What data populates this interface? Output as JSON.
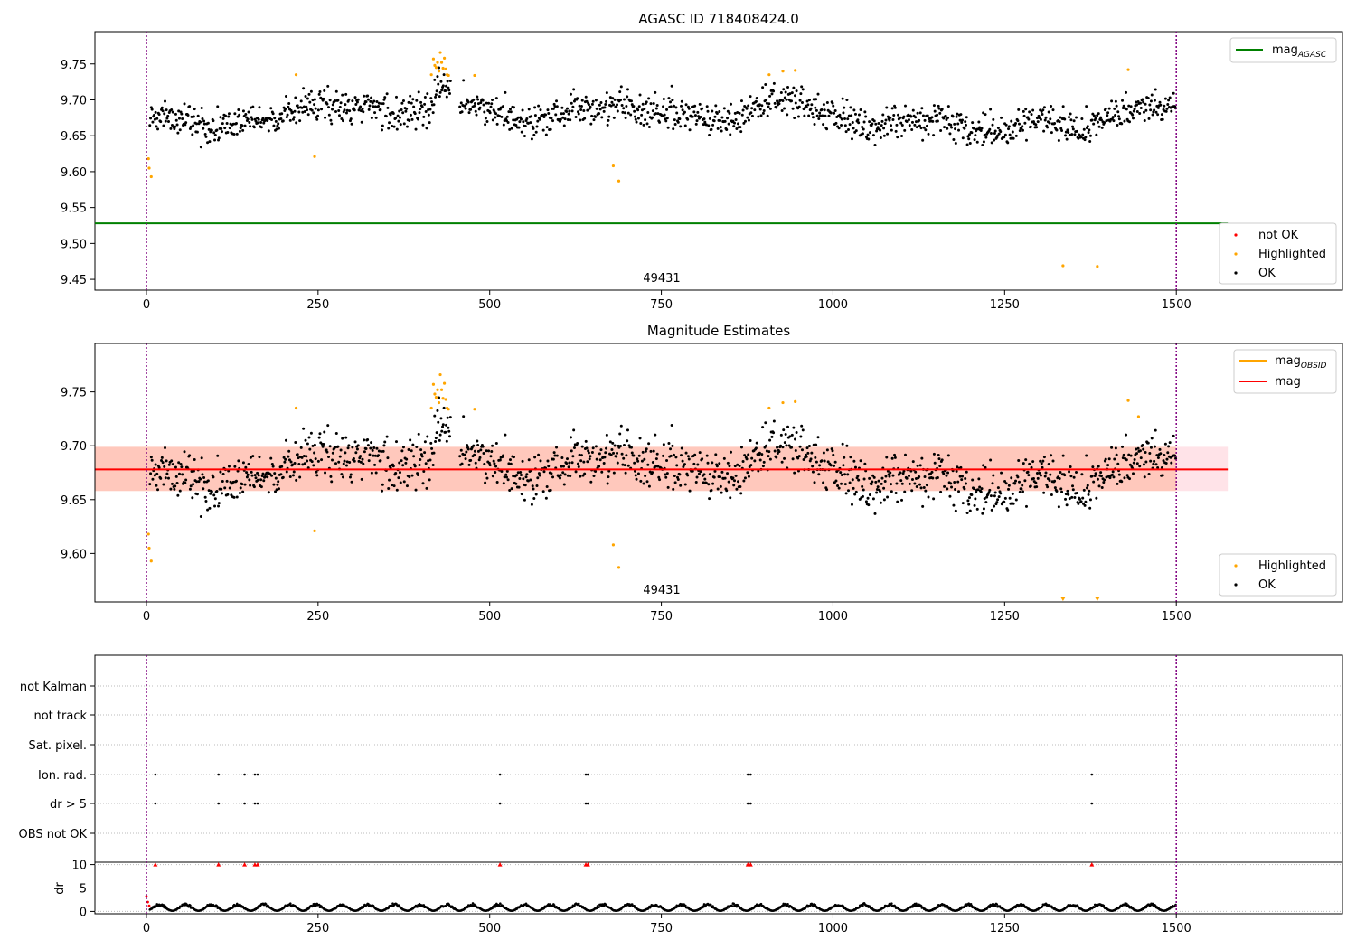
{
  "colors": {
    "ok": "#000000",
    "highlighted": "#ffa500",
    "not_ok": "#ff0000",
    "mag_agasc": "#008000",
    "mag_obsid": "#ffa500",
    "mag": "#ff0000",
    "vline": "#800080",
    "band_outer": "#ffc0cb",
    "band_inner": "#ffa07a",
    "grid": "#bbbbbb"
  },
  "obsid_label": "49431",
  "chart_data": [
    {
      "type": "scatter",
      "title": "AGASC ID 718408424.0",
      "xlim": [
        -75,
        1742
      ],
      "ylim": [
        9.435,
        9.795
      ],
      "x_ticks": [
        0,
        250,
        500,
        750,
        1000,
        1250,
        1500
      ],
      "y_ticks": [
        9.45,
        9.5,
        9.55,
        9.6,
        9.65,
        9.7,
        9.75
      ],
      "y_tick_labels": [
        "9.45",
        "9.50",
        "9.55",
        "9.60",
        "9.65",
        "9.70",
        "9.75"
      ],
      "mag_agasc": 9.528,
      "obs_boundaries": [
        0,
        1500
      ],
      "legend_lines": [
        "mag",
        "AGASC"
      ],
      "legend_points": [
        "not OK",
        "Highlighted",
        "OK"
      ],
      "highlighted": [
        [
          3,
          9.618
        ],
        [
          4,
          9.605
        ],
        [
          7,
          9.593
        ],
        [
          218,
          9.735
        ],
        [
          245,
          9.621
        ],
        [
          415,
          9.735
        ],
        [
          418,
          9.757
        ],
        [
          420,
          9.748
        ],
        [
          422,
          9.745
        ],
        [
          424,
          9.752
        ],
        [
          426,
          9.74
        ],
        [
          428,
          9.766
        ],
        [
          430,
          9.752
        ],
        [
          432,
          9.744
        ],
        [
          434,
          9.758
        ],
        [
          436,
          9.743
        ],
        [
          438,
          9.735
        ],
        [
          440,
          9.734
        ],
        [
          478,
          9.734
        ],
        [
          680,
          9.608
        ],
        [
          688,
          9.587
        ],
        [
          907,
          9.735
        ],
        [
          927,
          9.74
        ],
        [
          945,
          9.741
        ],
        [
          1335,
          9.469
        ],
        [
          1385,
          9.468
        ],
        [
          1430,
          9.742
        ]
      ]
    },
    {
      "type": "scatter",
      "title": "Magnitude Estimates",
      "xlim": [
        -75,
        1742
      ],
      "ylim": [
        9.555,
        9.795
      ],
      "x_ticks": [
        0,
        250,
        500,
        750,
        1000,
        1250,
        1500
      ],
      "y_ticks": [
        9.6,
        9.65,
        9.7,
        9.75
      ],
      "y_tick_labels": [
        "9.60",
        "9.65",
        "9.70",
        "9.75"
      ],
      "mag": 9.678,
      "mag_band_outer": [
        9.658,
        9.699
      ],
      "mag_band_inner": [
        9.658,
        9.699
      ],
      "band_xmax": 1575,
      "obs_boundaries": [
        0,
        1500
      ],
      "legend_lines": [
        "mag",
        "OBSID",
        "mag"
      ],
      "legend_points": [
        "Highlighted",
        "OK"
      ],
      "highlighted": [
        [
          3,
          9.618
        ],
        [
          4,
          9.605
        ],
        [
          7,
          9.593
        ],
        [
          218,
          9.735
        ],
        [
          245,
          9.621
        ],
        [
          415,
          9.735
        ],
        [
          418,
          9.757
        ],
        [
          420,
          9.748
        ],
        [
          422,
          9.745
        ],
        [
          424,
          9.752
        ],
        [
          426,
          9.74
        ],
        [
          428,
          9.766
        ],
        [
          430,
          9.752
        ],
        [
          432,
          9.744
        ],
        [
          434,
          9.758
        ],
        [
          436,
          9.743
        ],
        [
          438,
          9.735
        ],
        [
          440,
          9.734
        ],
        [
          478,
          9.734
        ],
        [
          680,
          9.608
        ],
        [
          688,
          9.587
        ],
        [
          907,
          9.735
        ],
        [
          927,
          9.74
        ],
        [
          945,
          9.741
        ],
        [
          1430,
          9.742
        ],
        [
          1445,
          9.727
        ]
      ],
      "out_of_range_markers": [
        1335,
        1385
      ]
    },
    {
      "type": "scatter",
      "title": "",
      "xlim": [
        -75,
        1742
      ],
      "x_ticks": [
        0,
        250,
        500,
        750,
        1000,
        1250,
        1500
      ],
      "flag_categories": [
        "not Kalman",
        "not track",
        "Sat. pixel.",
        "Ion. rad.",
        "dr > 5",
        "OBS not OK"
      ],
      "flag_points": {
        "Ion. rad.": [
          13,
          105,
          143,
          158,
          162,
          515,
          640,
          643,
          876,
          880,
          1377
        ],
        "dr > 5": [
          13,
          105,
          143,
          158,
          162,
          515,
          640,
          643,
          876,
          880,
          1377
        ]
      }
    },
    {
      "type": "scatter",
      "title": "",
      "ylabel": "dr",
      "xlim": [
        -75,
        1742
      ],
      "ylim": [
        -0.5,
        10.5
      ],
      "x_ticks": [
        0,
        250,
        500,
        750,
        1000,
        1250,
        1500
      ],
      "y_ticks": [
        0,
        5,
        10
      ],
      "y_tick_labels": [
        "0",
        "5",
        "10"
      ],
      "clipped_at_10": [
        13,
        105,
        143,
        158,
        162,
        515,
        640,
        643,
        876,
        880,
        1377
      ],
      "dr_start": [
        [
          0,
          3.2
        ],
        [
          2,
          2.0
        ],
        [
          4,
          1.2
        ]
      ]
    }
  ]
}
